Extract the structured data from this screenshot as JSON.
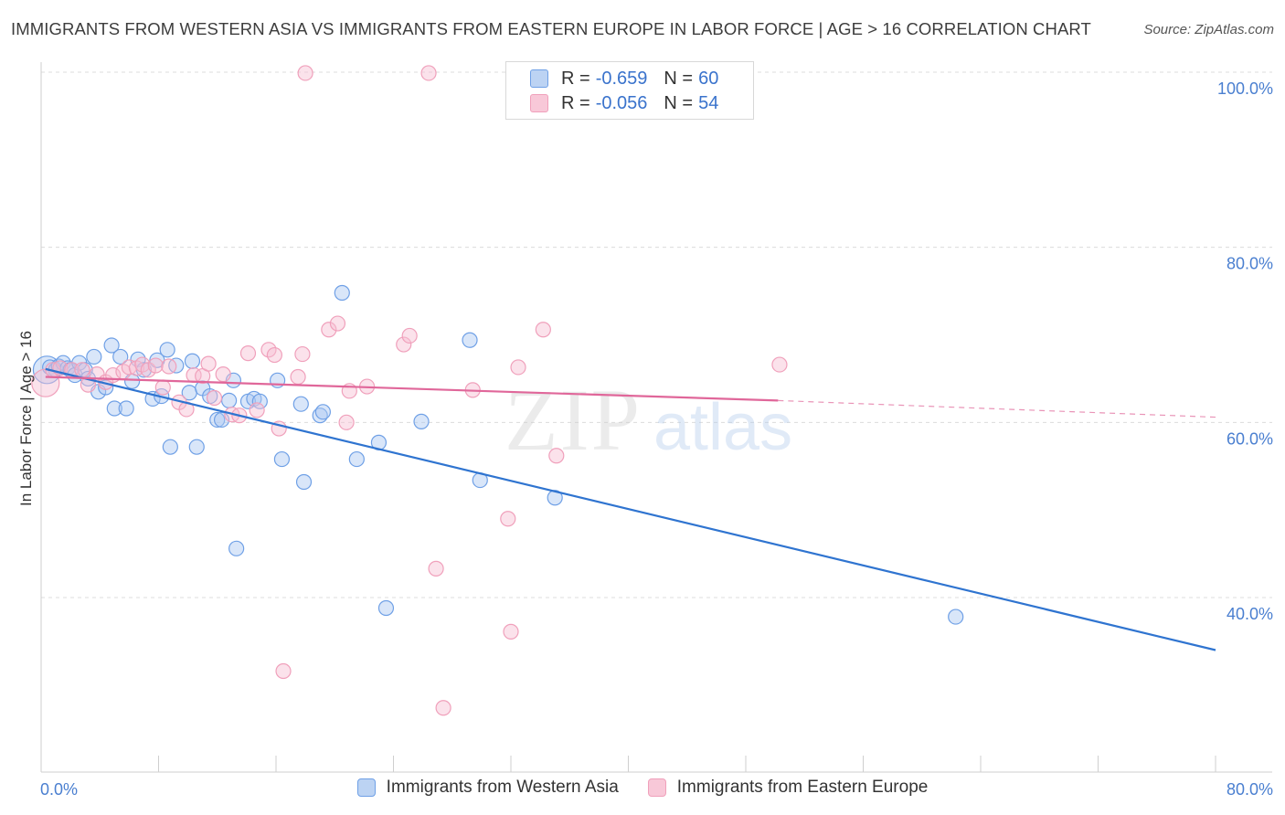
{
  "title": "IMMIGRANTS FROM WESTERN ASIA VS IMMIGRANTS FROM EASTERN EUROPE IN LABOR FORCE | AGE > 16 CORRELATION CHART",
  "source": "Source: ZipAtlas.com",
  "watermark": {
    "zip": "ZIP",
    "atlas": "atlas"
  },
  "legend": {
    "rows": [
      {
        "r_label": "R =",
        "r_value": "-0.659",
        "n_label": "N =",
        "n_value": "60"
      },
      {
        "r_label": "R =",
        "r_value": "-0.056",
        "n_label": "N =",
        "n_value": "54"
      }
    ]
  },
  "chart_data": {
    "type": "scatter",
    "title": "IMMIGRANTS FROM WESTERN ASIA VS IMMIGRANTS FROM EASTERN EUROPE IN LABOR FORCE | AGE > 16 CORRELATION CHART",
    "xlabel": "",
    "ylabel": "In Labor Force | Age > 16",
    "xlim": [
      0,
      80
    ],
    "ylim": [
      20,
      102
    ],
    "x_tick_labels": [
      "0.0%",
      "80.0%"
    ],
    "y_ticks": [
      40,
      60,
      80,
      100
    ],
    "y_tick_labels": [
      "40.0%",
      "60.0%",
      "80.0%",
      "100.0%"
    ],
    "grid": "horizontal dashed",
    "legend_position": "top-center",
    "series": [
      {
        "name": "Immigrants from Western Asia",
        "color": "#6fa0e6",
        "line_color": "#2f74d0",
        "trend": {
          "x0": 0.3,
          "y0": 66.1,
          "x1": 80,
          "y1": 34.0,
          "dashed_from": null
        },
        "points": [
          [
            0.4,
            66.0
          ],
          [
            0.6,
            66.3
          ],
          [
            1.0,
            66.0
          ],
          [
            1.2,
            66.4
          ],
          [
            1.5,
            66.8
          ],
          [
            1.8,
            66.2
          ],
          [
            2.0,
            66.0
          ],
          [
            2.3,
            65.4
          ],
          [
            2.6,
            66.8
          ],
          [
            3.0,
            66.0
          ],
          [
            3.2,
            65.0
          ],
          [
            3.6,
            67.5
          ],
          [
            3.9,
            63.5
          ],
          [
            4.4,
            64.0
          ],
          [
            4.8,
            68.8
          ],
          [
            5.0,
            61.6
          ],
          [
            5.4,
            67.5
          ],
          [
            5.8,
            61.6
          ],
          [
            6.2,
            64.7
          ],
          [
            6.6,
            67.2
          ],
          [
            7.0,
            66.0
          ],
          [
            7.6,
            62.7
          ],
          [
            7.9,
            67.1
          ],
          [
            8.2,
            63.0
          ],
          [
            8.6,
            68.3
          ],
          [
            8.8,
            57.2
          ],
          [
            9.2,
            66.5
          ],
          [
            10.1,
            63.4
          ],
          [
            10.3,
            67.0
          ],
          [
            10.6,
            57.2
          ],
          [
            11.0,
            63.9
          ],
          [
            11.5,
            63.0
          ],
          [
            12.0,
            60.3
          ],
          [
            12.3,
            60.3
          ],
          [
            12.8,
            62.5
          ],
          [
            13.1,
            64.8
          ],
          [
            13.3,
            45.6
          ],
          [
            14.1,
            62.4
          ],
          [
            14.5,
            62.7
          ],
          [
            14.9,
            62.4
          ],
          [
            16.1,
            64.8
          ],
          [
            16.4,
            55.8
          ],
          [
            17.7,
            62.1
          ],
          [
            17.9,
            53.2
          ],
          [
            19.0,
            60.8
          ],
          [
            19.2,
            61.2
          ],
          [
            20.5,
            74.8
          ],
          [
            21.5,
            55.8
          ],
          [
            23.0,
            57.7
          ],
          [
            23.5,
            38.8
          ],
          [
            25.9,
            60.1
          ],
          [
            29.2,
            69.4
          ],
          [
            29.9,
            53.4
          ],
          [
            35.0,
            51.4
          ],
          [
            62.3,
            37.8
          ]
        ]
      },
      {
        "name": "Immigrants from Eastern Europe",
        "color": "#f0a0bb",
        "line_color": "#e0679a",
        "trend": {
          "x0": 0.3,
          "y0": 65.2,
          "x1": 50.2,
          "y1": 62.5,
          "dashed_to": 80,
          "dashed_y": 60.6
        },
        "points": [
          [
            0.3,
            64.5
          ],
          [
            0.8,
            66.0
          ],
          [
            1.3,
            66.2
          ],
          [
            2.1,
            66.0
          ],
          [
            2.8,
            66.0
          ],
          [
            3.2,
            64.3
          ],
          [
            3.8,
            65.5
          ],
          [
            4.4,
            64.6
          ],
          [
            4.9,
            65.4
          ],
          [
            5.6,
            65.8
          ],
          [
            6.0,
            66.3
          ],
          [
            6.5,
            66.2
          ],
          [
            6.9,
            66.6
          ],
          [
            7.3,
            66.0
          ],
          [
            7.8,
            66.5
          ],
          [
            8.3,
            64.0
          ],
          [
            8.7,
            66.4
          ],
          [
            9.4,
            62.3
          ],
          [
            9.9,
            61.5
          ],
          [
            10.4,
            65.4
          ],
          [
            11.0,
            65.3
          ],
          [
            11.4,
            66.7
          ],
          [
            11.8,
            62.8
          ],
          [
            12.4,
            65.5
          ],
          [
            13.0,
            60.9
          ],
          [
            13.5,
            60.8
          ],
          [
            14.1,
            67.9
          ],
          [
            14.7,
            61.4
          ],
          [
            15.5,
            68.3
          ],
          [
            15.9,
            67.7
          ],
          [
            16.2,
            59.3
          ],
          [
            16.5,
            31.6
          ],
          [
            17.5,
            65.2
          ],
          [
            17.8,
            67.8
          ],
          [
            18.0,
            99.9
          ],
          [
            19.6,
            70.6
          ],
          [
            20.2,
            71.3
          ],
          [
            20.8,
            60.0
          ],
          [
            21.0,
            63.6
          ],
          [
            22.2,
            64.1
          ],
          [
            24.7,
            68.9
          ],
          [
            25.1,
            69.9
          ],
          [
            26.4,
            99.9
          ],
          [
            26.9,
            43.3
          ],
          [
            27.4,
            27.4
          ],
          [
            29.4,
            63.7
          ],
          [
            31.8,
            49.0
          ],
          [
            32.0,
            36.1
          ],
          [
            32.5,
            66.3
          ],
          [
            34.2,
            70.6
          ],
          [
            34.6,
            95.5
          ],
          [
            35.1,
            56.2
          ],
          [
            50.3,
            66.6
          ]
        ]
      }
    ]
  }
}
